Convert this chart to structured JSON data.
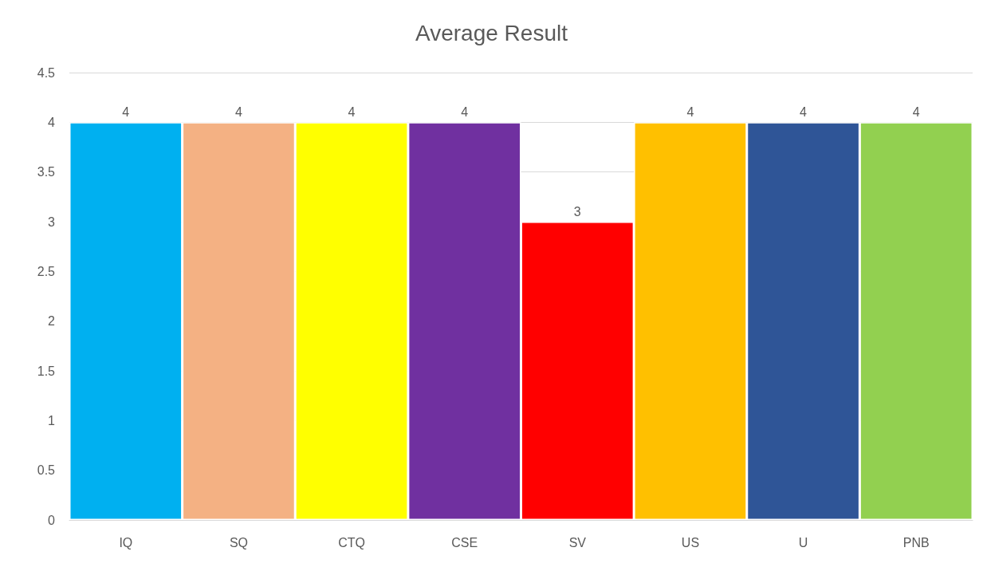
{
  "chart_data": {
    "type": "bar",
    "title": "Average Result",
    "categories": [
      "IQ",
      "SQ",
      "CTQ",
      "CSE",
      "SV",
      "US",
      "U",
      "PNB"
    ],
    "values": [
      4,
      4,
      4,
      4,
      3,
      4,
      4,
      4
    ],
    "colors": [
      "#00b0f0",
      "#f4b183",
      "#ffff00",
      "#7030a0",
      "#ff0000",
      "#ffc000",
      "#2f5597",
      "#92d050"
    ],
    "ylim": [
      0,
      4.5
    ],
    "yticks": [
      0,
      0.5,
      1,
      1.5,
      2,
      2.5,
      3,
      3.5,
      4,
      4.5
    ],
    "grid": "y",
    "data_labels": true
  }
}
